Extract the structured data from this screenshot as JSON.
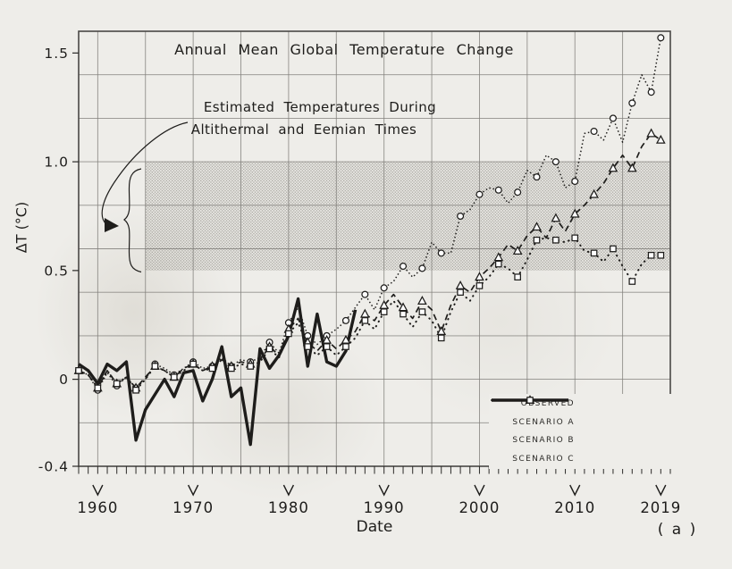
{
  "figure": {
    "title": "Annual Mean Global Temperature Change",
    "annotation_line1": "Estimated Temperatures During",
    "annotation_line2": "Altithermal and Eemian Times",
    "panel_label": "( a )"
  },
  "axes": {
    "x_label": "Date",
    "y_label": "ΔT (°C)",
    "x_ticks": [
      {
        "label": "1960",
        "year": 1960
      },
      {
        "label": "1970",
        "year": 1970
      },
      {
        "label": "1980",
        "year": 1980
      },
      {
        "label": "1990",
        "year": 1990
      },
      {
        "label": "2000",
        "year": 2000
      },
      {
        "label": "2010",
        "year": 2010
      },
      {
        "label": "2019",
        "year": 2019
      }
    ],
    "y_ticks": [
      {
        "label": "1.5",
        "value": 1.5
      },
      {
        "label": "1.0",
        "value": 1.0
      },
      {
        "label": "0.5",
        "value": 0.5
      },
      {
        "label": "0",
        "value": 0
      },
      {
        "label": "-0.4",
        "value": -0.4
      }
    ]
  },
  "legend": {
    "items": [
      {
        "label": "OBSERVED",
        "line_style": "solid-thick",
        "marker": "none"
      },
      {
        "label": "SCENARIO A",
        "line_style": "fine-dotted",
        "marker": "circle"
      },
      {
        "label": "SCENARIO B",
        "line_style": "dashed",
        "marker": "triangle"
      },
      {
        "label": "SCENARIO C",
        "line_style": "sparse-dotted",
        "marker": "square"
      }
    ]
  },
  "colors": {
    "ink": "#1e1d1b",
    "grid": "#82807c",
    "border": "#4a4846",
    "paper": "#eeede9",
    "stipple_dot": "#96948d"
  },
  "chart_data": {
    "type": "line",
    "title": "Annual Mean Global Temperature Change",
    "xlabel": "Date",
    "ylabel": "ΔT (°C)",
    "xlim": [
      1958,
      2020
    ],
    "ylim": [
      -0.4,
      1.6
    ],
    "x_gridline_step_years": 5,
    "y_gridline_step": 0.2,
    "grid": true,
    "legend_position": "lower right",
    "shaded_band": {
      "label": "Estimated Temperatures During Altithermal and Eemian Times",
      "x_from": 1965,
      "x_to": 2020,
      "y_from": 0.5,
      "y_to": 1.0,
      "texture": "stipple"
    },
    "series": [
      {
        "name": "OBSERVED",
        "style": "solid-thick",
        "marker": "none",
        "x_start": 1958,
        "values": [
          0.07,
          0.04,
          -0.02,
          0.07,
          0.04,
          0.08,
          -0.28,
          -0.14,
          -0.07,
          0.0,
          -0.08,
          0.03,
          0.04,
          -0.1,
          0.0,
          0.15,
          -0.08,
          -0.04,
          -0.3,
          0.14,
          0.05,
          0.11,
          0.2,
          0.37,
          0.06,
          0.3,
          0.08,
          0.06,
          0.13,
          0.32
        ]
      },
      {
        "name": "SCENARIO A",
        "style": "fine-dotted",
        "marker": "circle",
        "x_start": 1958,
        "values": [
          0.04,
          0.02,
          -0.05,
          0.03,
          -0.03,
          0.01,
          -0.04,
          0.0,
          0.07,
          0.05,
          0.02,
          0.05,
          0.08,
          0.05,
          0.06,
          0.1,
          0.06,
          0.09,
          0.08,
          0.1,
          0.17,
          0.12,
          0.26,
          0.33,
          0.2,
          0.16,
          0.2,
          0.23,
          0.27,
          0.33,
          0.39,
          0.32,
          0.42,
          0.45,
          0.52,
          0.47,
          0.51,
          0.63,
          0.58,
          0.58,
          0.75,
          0.78,
          0.85,
          0.88,
          0.87,
          0.81,
          0.86,
          0.96,
          0.93,
          1.03,
          1.0,
          0.88,
          0.91,
          1.13,
          1.14,
          1.1,
          1.2,
          1.09,
          1.27,
          1.4,
          1.32,
          1.57
        ]
      },
      {
        "name": "SCENARIO B",
        "style": "dashed",
        "marker": "triangle",
        "x_start": 1958,
        "values": [
          0.04,
          0.02,
          -0.04,
          0.04,
          -0.02,
          0.01,
          -0.04,
          0.01,
          0.06,
          0.04,
          0.01,
          0.05,
          0.07,
          0.04,
          0.06,
          0.09,
          0.06,
          0.08,
          0.07,
          0.09,
          0.15,
          0.11,
          0.23,
          0.28,
          0.17,
          0.13,
          0.18,
          0.14,
          0.18,
          0.22,
          0.3,
          0.27,
          0.34,
          0.39,
          0.33,
          0.28,
          0.36,
          0.32,
          0.22,
          0.34,
          0.43,
          0.4,
          0.47,
          0.51,
          0.56,
          0.62,
          0.59,
          0.66,
          0.7,
          0.65,
          0.74,
          0.68,
          0.76,
          0.8,
          0.85,
          0.9,
          0.97,
          1.03,
          0.97,
          1.07,
          1.13,
          1.1
        ]
      },
      {
        "name": "SCENARIO C",
        "style": "sparse-dotted",
        "marker": "square",
        "x_start": 1958,
        "values": [
          0.04,
          0.02,
          -0.04,
          0.04,
          -0.02,
          0.01,
          -0.05,
          0.0,
          0.06,
          0.04,
          0.01,
          0.04,
          0.07,
          0.04,
          0.05,
          0.09,
          0.05,
          0.07,
          0.06,
          0.08,
          0.14,
          0.1,
          0.21,
          0.26,
          0.15,
          0.11,
          0.15,
          0.11,
          0.15,
          0.19,
          0.27,
          0.23,
          0.31,
          0.36,
          0.3,
          0.24,
          0.31,
          0.27,
          0.19,
          0.31,
          0.4,
          0.36,
          0.43,
          0.47,
          0.53,
          0.51,
          0.47,
          0.55,
          0.64,
          0.65,
          0.64,
          0.63,
          0.65,
          0.59,
          0.58,
          0.54,
          0.6,
          0.52,
          0.45,
          0.53,
          0.57,
          0.57
        ]
      }
    ]
  }
}
